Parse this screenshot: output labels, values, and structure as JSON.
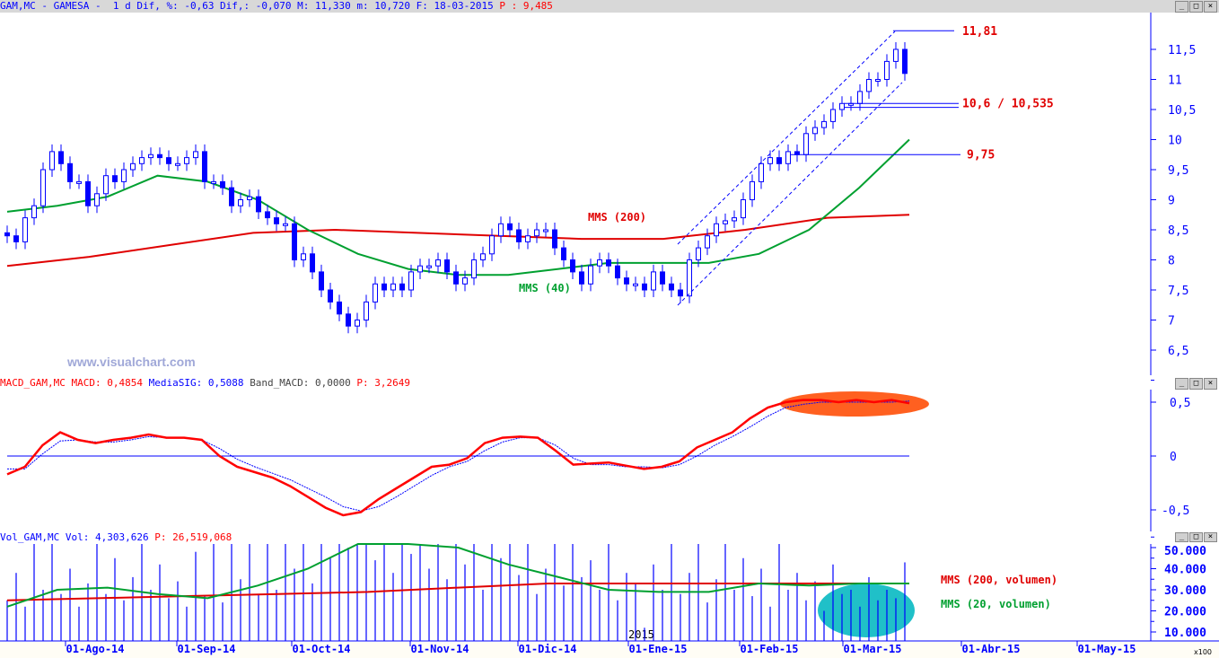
{
  "header": {
    "symbol": "GAM,MC - GAMESA -",
    "period": "1 d",
    "stats": "Dif, %: -0,63 Dif,: -0,070 M: 11,330 m: 10,720 F: 18-03-2015",
    "price": "P : 9,485"
  },
  "macd_header": {
    "name": "MACD_GAM,MC",
    "macd": "MACD: 0,4854",
    "signal": "MediaSIG: 0,5088",
    "band": "Band_MACD: 0,0000",
    "p": "P: 3,2649"
  },
  "vol_header": {
    "name": "Vol_GAM,MC",
    "vol": "Vol: 4,303,626",
    "p": "P: 26,519,068"
  },
  "window_buttons": [
    "_",
    "□",
    "×"
  ],
  "watermark": "www.visualchart.com",
  "year_label": "2015",
  "vol_unit": "x100",
  "colors": {
    "candle": "#0000ff",
    "mms200": "#e00000",
    "mms40": "#00a030",
    "macd": "#ff0000",
    "signal": "#0000ff",
    "highlight_orange": "#ff6020",
    "highlight_cyan": "#20c0c8"
  },
  "chart_data": [
    {
      "type": "candlestick",
      "title": "GAM,MC - GAMESA",
      "y_ticks": [
        "11,5",
        "11",
        "10,5",
        "10",
        "9,5",
        "9",
        "8,5",
        "8",
        "7,5",
        "7",
        "6,5"
      ],
      "ylim": [
        6.0,
        12.0
      ],
      "x_ticks": [
        "01-Ago-14",
        "01-Sep-14",
        "01-Oct-14",
        "01-Nov-14",
        "01-Dic-14",
        "01-Ene-15",
        "01-Feb-15",
        "01-Mar-15",
        "01-Abr-15",
        "01-May-15"
      ],
      "closes": [
        8.4,
        8.3,
        8.7,
        8.9,
        9.5,
        9.8,
        9.6,
        9.3,
        9.3,
        8.9,
        9.1,
        9.4,
        9.3,
        9.5,
        9.6,
        9.7,
        9.75,
        9.7,
        9.6,
        9.6,
        9.7,
        9.8,
        9.3,
        9.3,
        9.2,
        8.9,
        9.0,
        9.05,
        8.8,
        8.7,
        8.6,
        8.6,
        8.0,
        8.1,
        7.8,
        7.5,
        7.3,
        7.1,
        6.9,
        7.0,
        7.3,
        7.6,
        7.5,
        7.6,
        7.5,
        7.8,
        7.9,
        7.9,
        8.0,
        7.8,
        7.6,
        7.7,
        8.0,
        8.1,
        8.4,
        8.6,
        8.5,
        8.3,
        8.4,
        8.5,
        8.5,
        8.2,
        8.0,
        7.8,
        7.6,
        7.9,
        8.0,
        7.9,
        7.7,
        7.6,
        7.6,
        7.5,
        7.8,
        7.6,
        7.5,
        7.4,
        8.0,
        8.2,
        8.4,
        8.6,
        8.65,
        8.7,
        9.0,
        9.3,
        9.6,
        9.7,
        9.6,
        9.8,
        9.75,
        10.1,
        10.2,
        10.3,
        10.5,
        10.6,
        10.6,
        10.8,
        11.0,
        11.0,
        11.3,
        11.5,
        11.1
      ],
      "series": [
        {
          "name": "MMS (200)",
          "values": [
            7.9,
            8.05,
            8.25,
            8.45,
            8.5,
            8.45,
            8.4,
            8.35,
            8.35,
            8.5,
            8.7,
            8.75
          ]
        },
        {
          "name": "MMS (40)",
          "values": [
            8.8,
            8.9,
            9.05,
            9.4,
            9.3,
            9.0,
            8.5,
            8.1,
            7.85,
            7.75,
            7.75,
            7.85,
            7.95,
            7.95,
            7.95,
            8.1,
            8.5,
            9.2,
            10.0
          ]
        }
      ],
      "annotations": [
        {
          "label": "11,81",
          "value": 11.81
        },
        {
          "label": "10,6 / 10,535",
          "values": [
            10.6,
            10.535
          ]
        },
        {
          "label": "9,75",
          "value": 9.75
        }
      ]
    },
    {
      "type": "line",
      "title": "MACD_GAM,MC",
      "y_ticks": [
        "0,5",
        "0",
        "-0,5"
      ],
      "ylim": [
        -0.65,
        0.65
      ],
      "series": [
        {
          "name": "MACD",
          "values": [
            -0.17,
            -0.1,
            0.1,
            0.22,
            0.15,
            0.12,
            0.15,
            0.17,
            0.2,
            0.17,
            0.17,
            0.15,
            0.0,
            -0.1,
            -0.15,
            -0.2,
            -0.28,
            -0.38,
            -0.48,
            -0.55,
            -0.52,
            -0.4,
            -0.3,
            -0.2,
            -0.1,
            -0.08,
            -0.02,
            0.12,
            0.17,
            0.18,
            0.17,
            0.05,
            -0.08,
            -0.07,
            -0.06,
            -0.09,
            -0.12,
            -0.1,
            -0.05,
            0.08,
            0.15,
            0.22,
            0.35,
            0.45,
            0.5,
            0.52,
            0.52,
            0.5,
            0.52,
            0.5,
            0.52,
            0.49
          ]
        },
        {
          "name": "MediaSIG",
          "values": [
            -0.12,
            -0.12,
            0.02,
            0.14,
            0.15,
            0.13,
            0.13,
            0.15,
            0.18,
            0.17,
            0.17,
            0.15,
            0.07,
            -0.03,
            -0.1,
            -0.16,
            -0.22,
            -0.3,
            -0.38,
            -0.47,
            -0.51,
            -0.47,
            -0.38,
            -0.28,
            -0.18,
            -0.1,
            -0.05,
            0.05,
            0.13,
            0.17,
            0.17,
            0.1,
            -0.02,
            -0.08,
            -0.08,
            -0.1,
            -0.1,
            -0.11,
            -0.08,
            0.0,
            0.1,
            0.18,
            0.27,
            0.37,
            0.45,
            0.48,
            0.5,
            0.5,
            0.5,
            0.5,
            0.5,
            0.51
          ]
        }
      ]
    },
    {
      "type": "bar",
      "title": "Vol_GAM,MC",
      "y_ticks": [
        "50.000",
        "40.000",
        "30.000",
        "20.000",
        "10.000"
      ],
      "ylim": [
        5.7,
        52
      ],
      "values": [
        25,
        38,
        22,
        52,
        30,
        52,
        28,
        40,
        22,
        33,
        52,
        28,
        45,
        25,
        36,
        52,
        30,
        42,
        26,
        34,
        22,
        48,
        27,
        52,
        24,
        52,
        35,
        52,
        28,
        52,
        30,
        52,
        40,
        52,
        33,
        52,
        45,
        52,
        50,
        52,
        52,
        44,
        52,
        38,
        52,
        47,
        52,
        40,
        52,
        35,
        52,
        42,
        52,
        30,
        52,
        45,
        52,
        37,
        52,
        28,
        40,
        52,
        32,
        52,
        36,
        44,
        30,
        52,
        25,
        38,
        33,
        12,
        42,
        30,
        52,
        28,
        38,
        52,
        24,
        35,
        52,
        30,
        45,
        27,
        40,
        22,
        52,
        30,
        38,
        25,
        34,
        20,
        42,
        28,
        30,
        22,
        36,
        25,
        30,
        26,
        43
      ],
      "series": [
        {
          "name": "MMS (200, volumen)",
          "values": [
            25,
            26,
            27,
            28,
            29,
            31,
            33,
            33,
            33,
            33,
            33
          ]
        },
        {
          "name": "MMS (20, volumen)",
          "values": [
            22,
            30,
            31,
            28,
            26,
            32,
            40,
            55,
            55,
            50,
            42,
            36,
            30,
            29,
            29,
            33,
            32,
            33,
            33
          ]
        }
      ]
    }
  ]
}
